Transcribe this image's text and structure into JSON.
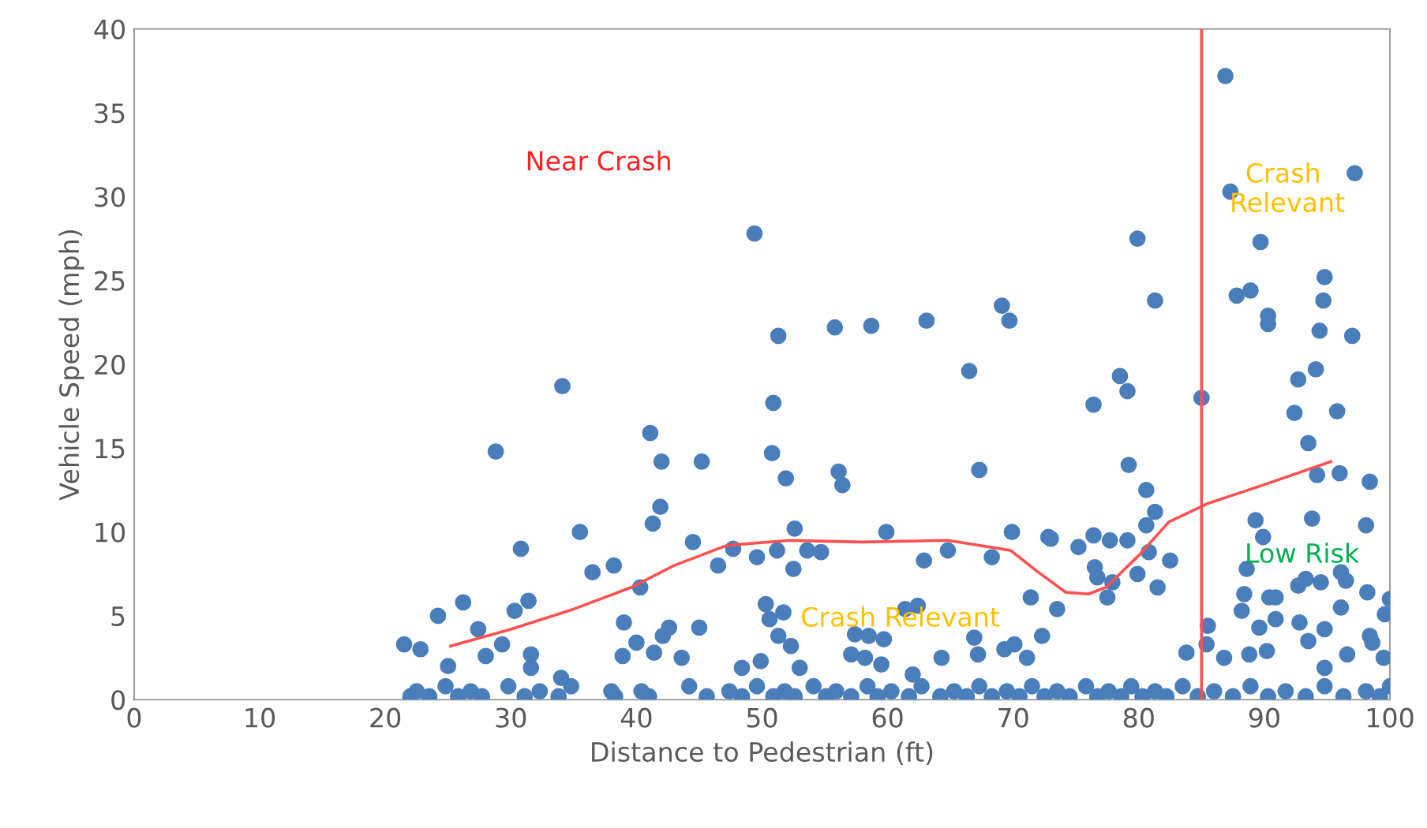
{
  "chart_data": {
    "type": "scatter",
    "xlabel": "Distance to Pedestrian (ft)",
    "ylabel": "Vehicle Speed (mph)",
    "xlim": [
      0,
      100
    ],
    "xticks": [
      0,
      10,
      20,
      30,
      40,
      50,
      60,
      70,
      80,
      90,
      100
    ],
    "ylim": [
      0,
      40
    ],
    "yticks": [
      0,
      5,
      10,
      15,
      20,
      25,
      30,
      35,
      40
    ],
    "grid": false,
    "legend": false,
    "marker": "circle",
    "series": [
      {
        "color": "#4a7ebb",
        "x": [
          21.5,
          22.8,
          24.2,
          26.2,
          27.4,
          25.0,
          29.3,
          28.0,
          31.6,
          31.6,
          30.3,
          31.4,
          36.5,
          38.2,
          39.0,
          40.3,
          40.0,
          38.9,
          42.6,
          42.1,
          41.4,
          45.0,
          43.6,
          46.5,
          34.0,
          38.0,
          50.3,
          50.6,
          51.7,
          51.3,
          52.3,
          53.0,
          48.4,
          49.9,
          57.4,
          58.5,
          59.7,
          57.1,
          58.2,
          59.5,
          61.4,
          62.4,
          62.0,
          64.3,
          66.9,
          67.2,
          69.3,
          70.1,
          71.4,
          71.1,
          72.3,
          73.5,
          69.9,
          62.9,
          64.8,
          68.3,
          47.7,
          49.6,
          51.2,
          52.5,
          53.6,
          54.7,
          52.6,
          59.9,
          72.8,
          49.4,
          51.3,
          55.8,
          58.7,
          63.1,
          69.1,
          69.7,
          66.5,
          50.9,
          50.8,
          51.9,
          56.1,
          56.4,
          67.3,
          34.1,
          28.8,
          41.1,
          42.0,
          45.2,
          41.9,
          41.3,
          44.5,
          35.5,
          30.8,
          79.9,
          81.3,
          78.5,
          79.1,
          76.4,
          85.0,
          86.9,
          87.3,
          89.7,
          87.8,
          88.9,
          90.3,
          90.3,
          94.8,
          94.7,
          94.4,
          97.0,
          94.1,
          92.7,
          92.4,
          95.8,
          93.5,
          94.2,
          96.0,
          98.4,
          97.2,
          93.8,
          98.1,
          89.3,
          89.9,
          79.2,
          80.6,
          81.3,
          80.6,
          73.0,
          75.2,
          76.4,
          77.7,
          79.1,
          80.8,
          82.5,
          79.9,
          76.5,
          76.7,
          77.9,
          81.5,
          77.5,
          88.6,
          92.7,
          93.3,
          94.5,
          96.1,
          96.5,
          88.4,
          90.4,
          90.9,
          98.2,
          100.0,
          99.6,
          96.1,
          88.2,
          90.9,
          92.8,
          89.6,
          94.8,
          93.5,
          98.4,
          98.6,
          96.6,
          99.5,
          90.2,
          86.8,
          88.8,
          85.5,
          85.4,
          94.8,
          83.8,
          22.0,
          22.5,
          23.5,
          24.8,
          25.8,
          26.8,
          27.7,
          29.8,
          31.1,
          32.3,
          33.8,
          34.8,
          38.3,
          40.4,
          41.0,
          44.2,
          45.6,
          47.4,
          48.4,
          49.6,
          50.9,
          51.8,
          52.6,
          54.1,
          55.1,
          55.9,
          57.1,
          58.4,
          59.2,
          60.3,
          61.7,
          62.7,
          64.2,
          65.3,
          66.3,
          67.3,
          68.3,
          69.5,
          70.5,
          71.5,
          72.5,
          73.5,
          74.5,
          75.8,
          76.7,
          77.6,
          78.6,
          79.4,
          80.3,
          81.3,
          82.2,
          83.5,
          84.7,
          86.0,
          87.5,
          88.9,
          90.3,
          91.7,
          93.3,
          94.8,
          96.3,
          98.1,
          99.2,
          100.0
        ],
        "values": [
          3.3,
          3.0,
          5.0,
          5.8,
          4.2,
          2.0,
          3.3,
          2.6,
          2.7,
          1.9,
          5.3,
          5.9,
          7.6,
          8.0,
          4.6,
          6.7,
          3.4,
          2.6,
          4.3,
          3.8,
          2.8,
          4.3,
          2.5,
          8.0,
          1.3,
          0.5,
          5.7,
          4.8,
          5.2,
          3.8,
          3.2,
          1.9,
          1.9,
          2.3,
          3.9,
          3.8,
          3.6,
          2.7,
          2.5,
          2.1,
          5.4,
          5.6,
          1.5,
          2.5,
          3.7,
          2.7,
          3.0,
          3.3,
          6.1,
          2.5,
          3.8,
          5.4,
          10.0,
          8.3,
          8.9,
          8.5,
          9.0,
          8.5,
          8.9,
          7.8,
          8.9,
          8.8,
          10.2,
          10.0,
          9.7,
          27.8,
          21.7,
          22.2,
          22.3,
          22.6,
          23.5,
          22.6,
          19.6,
          17.7,
          14.7,
          13.2,
          13.6,
          12.8,
          13.7,
          18.7,
          14.8,
          15.9,
          14.2,
          14.2,
          11.5,
          10.5,
          9.4,
          10.0,
          9.0,
          27.5,
          23.8,
          19.3,
          18.4,
          17.6,
          18.0,
          37.2,
          30.3,
          27.3,
          24.1,
          24.4,
          22.9,
          22.4,
          25.2,
          23.8,
          22.0,
          21.7,
          19.7,
          19.1,
          17.1,
          17.2,
          15.3,
          13.4,
          13.5,
          13.0,
          31.4,
          10.8,
          10.4,
          10.7,
          9.7,
          14.0,
          12.5,
          11.2,
          10.4,
          9.6,
          9.1,
          9.8,
          9.5,
          9.5,
          8.8,
          8.3,
          7.5,
          7.9,
          7.3,
          7.0,
          6.7,
          6.1,
          7.8,
          6.8,
          7.2,
          7.0,
          7.6,
          7.1,
          6.3,
          6.1,
          6.1,
          6.4,
          6.0,
          5.1,
          5.5,
          5.3,
          4.8,
          4.6,
          4.3,
          4.2,
          3.5,
          3.8,
          3.4,
          2.7,
          2.5,
          2.9,
          2.5,
          2.7,
          4.4,
          3.3,
          1.9,
          2.8,
          0.2,
          0.5,
          0.2,
          0.8,
          0.2,
          0.5,
          0.2,
          0.8,
          0.2,
          0.5,
          0.2,
          0.8,
          0.2,
          0.5,
          0.2,
          0.8,
          0.2,
          0.5,
          0.2,
          0.8,
          0.2,
          0.5,
          0.2,
          0.8,
          0.2,
          0.5,
          0.2,
          0.8,
          0.2,
          0.5,
          0.2,
          0.8,
          0.2,
          0.5,
          0.2,
          0.8,
          0.2,
          0.5,
          0.2,
          0.8,
          0.2,
          0.5,
          0.2,
          0.8,
          0.2,
          0.5,
          0.2,
          0.8,
          0.2,
          0.5,
          0.2,
          0.8,
          0.2,
          0.5,
          0.2,
          0.8,
          0.2,
          0.5,
          0.2,
          0.8,
          0.2,
          0.5,
          0.2,
          0.8
        ]
      },
      {
        "type": "line",
        "color": "#ff5050",
        "line_style": "solid",
        "marker": "none",
        "x": [
          25.2,
          30,
          35,
          39.6,
          43,
          47.2,
          52.2,
          58,
          64.8,
          69.8,
          72,
          74.2,
          76,
          77.4,
          80,
          82.4,
          85.5,
          89.9,
          95.3
        ],
        "values": [
          3.2,
          4.2,
          5.4,
          6.7,
          8.0,
          9.2,
          9.5,
          9.4,
          9.5,
          8.9,
          7.6,
          6.4,
          6.3,
          6.7,
          8.6,
          10.6,
          11.7,
          12.8,
          14.2
        ]
      }
    ],
    "ref_lines": [
      {
        "axis": "x",
        "value": 85,
        "color": "#ff5050",
        "line_style": "solid"
      }
    ],
    "annotations": [
      "Near Crash",
      {
        "text": "Crash Relevant",
        "x": 61,
        "y": 4.8
      },
      "Crash\n Relevant",
      "Low Risk"
    ]
  }
}
